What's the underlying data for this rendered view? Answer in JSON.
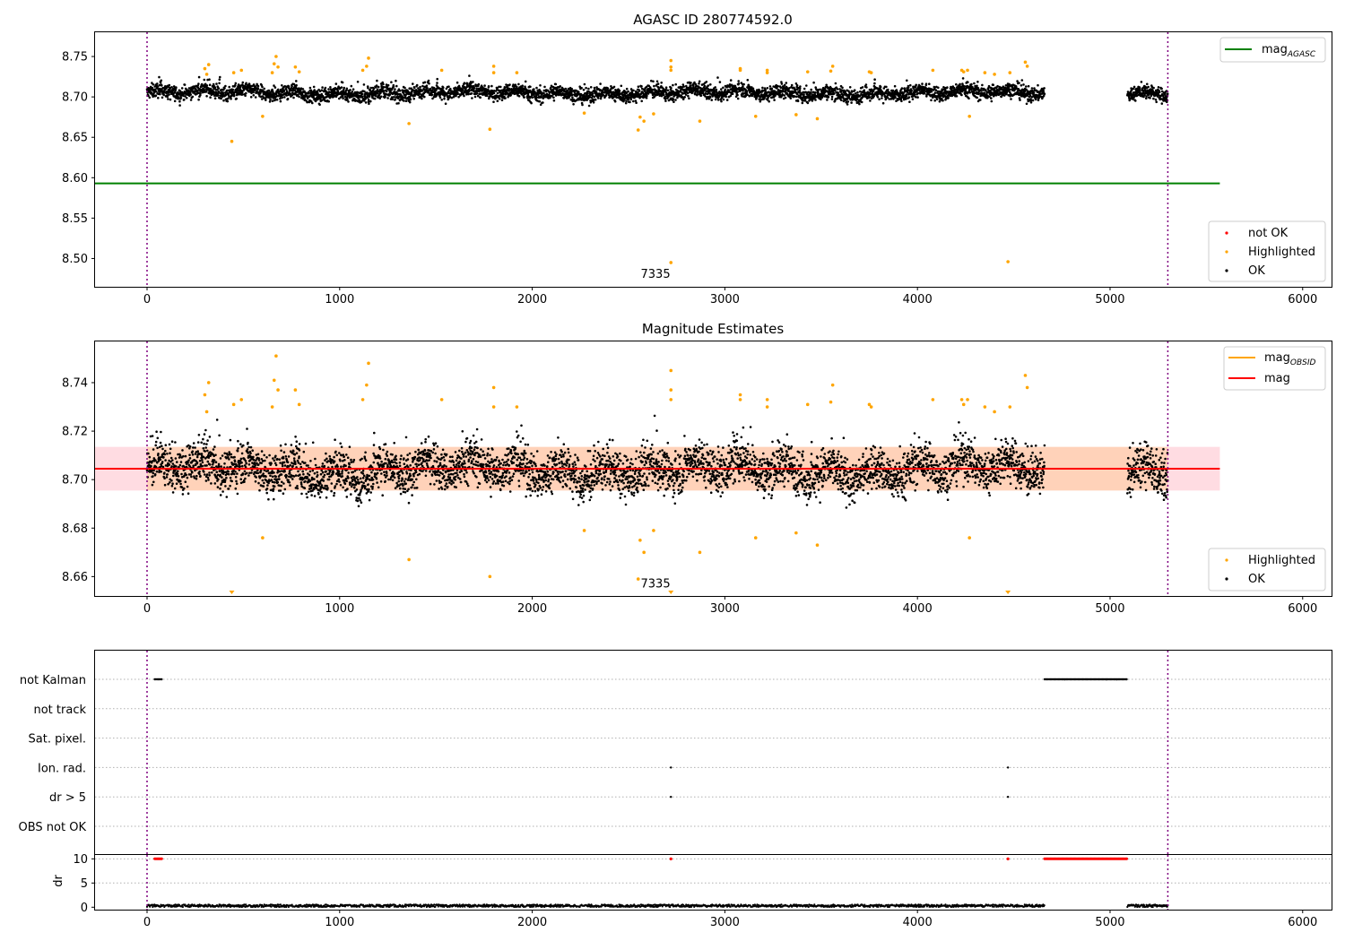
{
  "chart_data": [
    {
      "type": "scatter",
      "title": "AGASC ID 280774592.0",
      "xlim": [
        -270,
        6150
      ],
      "ylim": [
        8.465,
        8.78
      ],
      "x_ticks": [
        0,
        1000,
        2000,
        3000,
        4000,
        5000,
        6000
      ],
      "y_ticks": [
        8.5,
        8.55,
        8.6,
        8.65,
        8.7,
        8.75
      ],
      "x_tick_labels": [
        "0",
        "1000",
        "2000",
        "3000",
        "4000",
        "5000",
        "6000"
      ],
      "y_tick_labels": [
        "8.50",
        "8.55",
        "8.60",
        "8.65",
        "8.70",
        "8.75"
      ],
      "vlines": [
        0,
        5300
      ],
      "hline": {
        "value": 8.593,
        "x_range": [
          -270,
          5570
        ],
        "color": "#008000"
      },
      "annotation": {
        "text": "7335",
        "x": 2640,
        "y": 8.476
      },
      "legend_upper": [
        {
          "label": "mag",
          "sub": "AGASC",
          "color": "#008000"
        }
      ],
      "legend_lower": [
        {
          "label": "not OK",
          "color": "#ff0000"
        },
        {
          "label": "Highlighted",
          "color": "#ffa500"
        },
        {
          "label": "OK",
          "color": "#000000"
        }
      ],
      "series_summary": {
        "ok": {
          "x_segments": [
            [
              0,
              4660
            ],
            [
              5090,
              5300
            ]
          ],
          "center": 8.705,
          "spread": 0.008
        },
        "highlighted": [
          [
            300,
            8.735
          ],
          [
            310,
            8.728
          ],
          [
            320,
            8.74
          ],
          [
            440,
            8.645
          ],
          [
            450,
            8.73
          ],
          [
            490,
            8.733
          ],
          [
            600,
            8.676
          ],
          [
            650,
            8.73
          ],
          [
            660,
            8.741
          ],
          [
            670,
            8.75
          ],
          [
            680,
            8.737
          ],
          [
            770,
            8.737
          ],
          [
            790,
            8.731
          ],
          [
            1120,
            8.733
          ],
          [
            1140,
            8.738
          ],
          [
            1150,
            8.748
          ],
          [
            1360,
            8.667
          ],
          [
            1530,
            8.733
          ],
          [
            1780,
            8.66
          ],
          [
            1800,
            8.738
          ],
          [
            1800,
            8.73
          ],
          [
            1920,
            8.73
          ],
          [
            2270,
            8.68
          ],
          [
            2550,
            8.659
          ],
          [
            2560,
            8.675
          ],
          [
            2580,
            8.67
          ],
          [
            2720,
            8.745
          ],
          [
            2720,
            8.737
          ],
          [
            2720,
            8.733
          ],
          [
            2720,
            8.495
          ],
          [
            2630,
            8.679
          ],
          [
            2870,
            8.67
          ],
          [
            3080,
            8.733
          ],
          [
            3080,
            8.735
          ],
          [
            3160,
            8.676
          ],
          [
            3220,
            8.733
          ],
          [
            3220,
            8.73
          ],
          [
            3370,
            8.678
          ],
          [
            3430,
            8.731
          ],
          [
            3480,
            8.673
          ],
          [
            3560,
            8.738
          ],
          [
            3550,
            8.732
          ],
          [
            3750,
            8.731
          ],
          [
            3760,
            8.73
          ],
          [
            4080,
            8.733
          ],
          [
            4230,
            8.733
          ],
          [
            4240,
            8.731
          ],
          [
            4260,
            8.733
          ],
          [
            4270,
            8.676
          ],
          [
            4350,
            8.73
          ],
          [
            4400,
            8.728
          ],
          [
            4470,
            8.496
          ],
          [
            4480,
            8.73
          ],
          [
            4560,
            8.743
          ],
          [
            4570,
            8.738
          ]
        ]
      }
    },
    {
      "type": "scatter",
      "title": "Magnitude Estimates",
      "xlim": [
        -270,
        6150
      ],
      "ylim": [
        8.652,
        8.757
      ],
      "x_ticks": [
        0,
        1000,
        2000,
        3000,
        4000,
        5000,
        6000
      ],
      "y_ticks": [
        8.66,
        8.68,
        8.7,
        8.72,
        8.74
      ],
      "x_tick_labels": [
        "0",
        "1000",
        "2000",
        "3000",
        "4000",
        "5000",
        "6000"
      ],
      "y_tick_labels": [
        "8.66",
        "8.68",
        "8.70",
        "8.72",
        "8.74"
      ],
      "vlines": [
        0,
        5300
      ],
      "mag_line": {
        "value": 8.7045,
        "x_range": [
          -270,
          5570
        ],
        "color": "#ff0000"
      },
      "mag_band": {
        "low": 8.6955,
        "high": 8.7135,
        "color": "#ffc0cb"
      },
      "obsid_band": {
        "x_range": [
          -270,
          5570
        ],
        "low": 8.6955,
        "high": 8.7135,
        "color": "#ffa500"
      },
      "annotation": {
        "text": "7335",
        "x": 2640,
        "y": 8.6555
      },
      "legend_upper": [
        {
          "label": "mag",
          "sub": "OBSID",
          "color": "#ffa500"
        },
        {
          "label": "mag",
          "sub": "",
          "color": "#ff0000"
        }
      ],
      "legend_lower": [
        {
          "label": "Highlighted",
          "color": "#ffa500"
        },
        {
          "label": "OK",
          "color": "#000000"
        }
      ],
      "offscale_markers": [
        440,
        2720,
        4470
      ],
      "series_summary": {
        "ok": {
          "x_segments": [
            [
              0,
              4660
            ],
            [
              5090,
              5300
            ]
          ],
          "center": 8.704,
          "spread": 0.008
        },
        "highlighted": [
          [
            300,
            8.735
          ],
          [
            310,
            8.728
          ],
          [
            320,
            8.74
          ],
          [
            450,
            8.731
          ],
          [
            490,
            8.733
          ],
          [
            600,
            8.676
          ],
          [
            650,
            8.73
          ],
          [
            660,
            8.741
          ],
          [
            670,
            8.751
          ],
          [
            680,
            8.737
          ],
          [
            770,
            8.737
          ],
          [
            790,
            8.731
          ],
          [
            1120,
            8.733
          ],
          [
            1140,
            8.739
          ],
          [
            1150,
            8.748
          ],
          [
            1360,
            8.667
          ],
          [
            1530,
            8.733
          ],
          [
            1780,
            8.66
          ],
          [
            1800,
            8.738
          ],
          [
            1800,
            8.73
          ],
          [
            1920,
            8.73
          ],
          [
            2270,
            8.679
          ],
          [
            2550,
            8.659
          ],
          [
            2560,
            8.675
          ],
          [
            2580,
            8.67
          ],
          [
            2720,
            8.745
          ],
          [
            2720,
            8.737
          ],
          [
            2720,
            8.733
          ],
          [
            2630,
            8.679
          ],
          [
            2870,
            8.67
          ],
          [
            3080,
            8.733
          ],
          [
            3080,
            8.735
          ],
          [
            3160,
            8.676
          ],
          [
            3220,
            8.733
          ],
          [
            3220,
            8.73
          ],
          [
            3370,
            8.678
          ],
          [
            3430,
            8.731
          ],
          [
            3480,
            8.673
          ],
          [
            3560,
            8.739
          ],
          [
            3550,
            8.732
          ],
          [
            3750,
            8.731
          ],
          [
            3760,
            8.73
          ],
          [
            4080,
            8.733
          ],
          [
            4230,
            8.733
          ],
          [
            4240,
            8.731
          ],
          [
            4260,
            8.733
          ],
          [
            4270,
            8.676
          ],
          [
            4350,
            8.73
          ],
          [
            4400,
            8.728
          ],
          [
            4480,
            8.73
          ],
          [
            4560,
            8.743
          ],
          [
            4570,
            8.738
          ]
        ]
      }
    },
    {
      "type": "scatter",
      "title": "",
      "xlim": [
        -270,
        6150
      ],
      "x_ticks": [
        0,
        1000,
        2000,
        3000,
        4000,
        5000,
        6000
      ],
      "x_tick_labels": [
        "0",
        "1000",
        "2000",
        "3000",
        "4000",
        "5000",
        "6000"
      ],
      "vlines": [
        0,
        5300
      ],
      "flag_rows": [
        {
          "label": "not Kalman",
          "segments": [
            [
              40,
              80
            ],
            [
              4660,
              5090
            ]
          ],
          "points": []
        },
        {
          "label": "not track",
          "segments": [],
          "points": []
        },
        {
          "label": "Sat. pixel.",
          "segments": [],
          "points": []
        },
        {
          "label": "Ion. rad.",
          "segments": [],
          "points": [
            2720,
            4470
          ]
        },
        {
          "label": "dr > 5",
          "segments": [],
          "points": [
            2720,
            4470
          ]
        },
        {
          "label": "OBS not OK",
          "segments": [],
          "points": []
        }
      ],
      "dr_panel": {
        "ylabel": "dr",
        "ylim": [
          -0.5,
          10.8
        ],
        "y_ticks": [
          0,
          5,
          10
        ],
        "y_tick_labels": [
          "0",
          "5",
          "10"
        ],
        "capped_red": {
          "value": 10,
          "segments": [
            [
              40,
              80
            ],
            [
              4660,
              5090
            ]
          ],
          "points": [
            2720,
            4470
          ]
        },
        "black": {
          "x_segments": [
            [
              0,
              4660
            ],
            [
              5090,
              5300
            ]
          ],
          "level": 0.3
        }
      }
    }
  ]
}
